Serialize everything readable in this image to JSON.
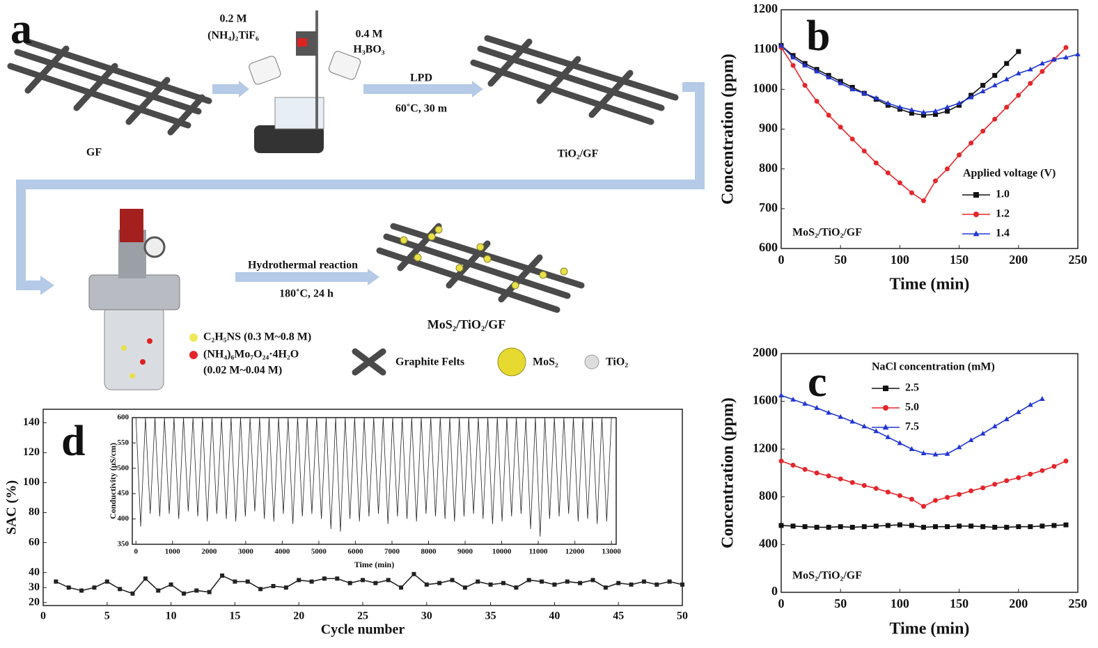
{
  "diagram": {
    "panel_label": "a",
    "ti_conc": "0.2 M",
    "ti_formula": "(NH₄)₂TiF₆",
    "b_conc": "0.4 M",
    "b_formula": "H₃BO₃",
    "step1": "LPD",
    "step1_cond": "60˚C, 30 m",
    "gf": "GF",
    "tio2_gf": "TiO₂/GF",
    "step2": "Hydrothermal reaction",
    "step2_cond": "180˚C, 24 h",
    "product": "MoS₂/TiO₂/GF",
    "reagent1": "C₂H₅NS (0.3 M~0.8 M)",
    "reagent2": "(NH₄)₆Mo₇O₂₄·4H₂O",
    "reagent2_conc": "(0.02 M~0.04 M)",
    "legend_gf": "Graphite Felts",
    "legend_mos2": "MoS₂",
    "legend_tio2": "TiO₂"
  },
  "chart_data": [
    {
      "type": "line",
      "panel_label": "b",
      "annotation": "MoS₂/TiO₂/GF",
      "x_label": "Time (min)",
      "y_label": "Concentration (ppm)",
      "legend_title": "Applied voltage (V)",
      "xlim": [
        0,
        250
      ],
      "ylim": [
        600,
        1200
      ],
      "xticks": [
        0,
        50,
        100,
        150,
        200,
        250
      ],
      "yticks": [
        600,
        700,
        800,
        900,
        1000,
        1100,
        1200
      ],
      "series": [
        {
          "name": "1.0",
          "color": "#111111",
          "marker": "square",
          "x": [
            0,
            10,
            20,
            30,
            40,
            50,
            60,
            70,
            80,
            90,
            100,
            110,
            120,
            130,
            140,
            150,
            160,
            170,
            180,
            190,
            200
          ],
          "values": [
            1110,
            1085,
            1065,
            1050,
            1035,
            1020,
            1005,
            990,
            975,
            960,
            950,
            940,
            935,
            937,
            945,
            960,
            985,
            1010,
            1035,
            1065,
            1095
          ]
        },
        {
          "name": "1.2",
          "color": "#e3262b",
          "marker": "circle",
          "x": [
            0,
            10,
            20,
            30,
            40,
            50,
            60,
            70,
            80,
            90,
            100,
            110,
            120,
            130,
            140,
            150,
            160,
            170,
            180,
            190,
            200,
            210,
            220,
            230,
            240
          ],
          "values": [
            1105,
            1060,
            1010,
            970,
            935,
            905,
            875,
            845,
            815,
            790,
            765,
            740,
            720,
            770,
            800,
            835,
            865,
            895,
            925,
            955,
            985,
            1015,
            1045,
            1075,
            1105
          ]
        },
        {
          "name": "1.4",
          "color": "#2236d2",
          "marker": "triangle",
          "x": [
            0,
            10,
            20,
            30,
            40,
            50,
            60,
            70,
            80,
            90,
            100,
            110,
            120,
            130,
            140,
            150,
            160,
            170,
            180,
            190,
            200,
            210,
            220,
            230,
            240,
            250
          ],
          "values": [
            1110,
            1080,
            1060,
            1045,
            1030,
            1015,
            1000,
            990,
            978,
            965,
            955,
            948,
            942,
            945,
            955,
            965,
            980,
            995,
            1010,
            1025,
            1040,
            1050,
            1065,
            1075,
            1080,
            1088
          ]
        }
      ]
    },
    {
      "type": "line",
      "panel_label": "c",
      "annotation": "MoS₂/TiO₂/GF",
      "x_label": "Time (min)",
      "y_label": "Concentration (ppm)",
      "legend_title": "NaCl concentration (mM)",
      "xlim": [
        0,
        250
      ],
      "ylim": [
        0,
        2000
      ],
      "xticks": [
        0,
        50,
        100,
        150,
        200,
        250
      ],
      "yticks": [
        0,
        400,
        800,
        1200,
        1600,
        2000
      ],
      "series": [
        {
          "name": "2.5",
          "color": "#111111",
          "marker": "square",
          "x": [
            0,
            10,
            20,
            30,
            40,
            50,
            60,
            70,
            80,
            90,
            100,
            110,
            120,
            130,
            140,
            150,
            160,
            170,
            180,
            190,
            200,
            210,
            220,
            230,
            240
          ],
          "values": [
            560,
            555,
            550,
            545,
            545,
            550,
            545,
            550,
            555,
            560,
            565,
            560,
            545,
            550,
            550,
            555,
            555,
            550,
            545,
            545,
            550,
            550,
            555,
            560,
            565
          ]
        },
        {
          "name": "5.0",
          "color": "#e3262b",
          "marker": "circle",
          "x": [
            0,
            10,
            20,
            30,
            40,
            50,
            60,
            70,
            80,
            90,
            100,
            110,
            120,
            130,
            140,
            150,
            160,
            170,
            180,
            190,
            200,
            210,
            220,
            230,
            240
          ],
          "values": [
            1100,
            1065,
            1030,
            1000,
            975,
            950,
            920,
            895,
            870,
            840,
            810,
            780,
            720,
            770,
            795,
            820,
            850,
            875,
            905,
            935,
            960,
            990,
            1020,
            1055,
            1100
          ]
        },
        {
          "name": "7.5",
          "color": "#2236d2",
          "marker": "triangle",
          "x": [
            0,
            10,
            20,
            30,
            40,
            50,
            60,
            70,
            80,
            90,
            100,
            110,
            120,
            130,
            140,
            150,
            160,
            170,
            180,
            190,
            200,
            210,
            220
          ],
          "values": [
            1650,
            1615,
            1580,
            1545,
            1505,
            1470,
            1430,
            1390,
            1350,
            1300,
            1250,
            1200,
            1165,
            1155,
            1160,
            1215,
            1275,
            1330,
            1390,
            1450,
            1510,
            1570,
            1620
          ]
        }
      ]
    },
    {
      "type": "line",
      "panel_label": "d",
      "x_label": "Cycle number",
      "y_label": "SAC (%)",
      "xlim": [
        0,
        50
      ],
      "ylim": [
        18,
        149
      ],
      "xticks": [
        0,
        5,
        10,
        15,
        20,
        25,
        30,
        35,
        40,
        45,
        50
      ],
      "yticks": [
        20,
        30,
        40,
        60,
        80,
        100,
        120,
        140
      ],
      "series": [
        {
          "color": "#222222",
          "marker": "square",
          "x": [
            1,
            2,
            3,
            4,
            5,
            6,
            7,
            8,
            9,
            10,
            11,
            12,
            13,
            14,
            15,
            16,
            17,
            18,
            19,
            20,
            21,
            22,
            23,
            24,
            25,
            26,
            27,
            28,
            29,
            30,
            31,
            32,
            33,
            34,
            35,
            36,
            37,
            38,
            39,
            40,
            41,
            42,
            43,
            44,
            45,
            46,
            47,
            48,
            49,
            50
          ],
          "values": [
            34,
            30,
            28,
            30,
            34,
            29,
            26,
            36,
            28,
            32,
            26,
            28,
            27,
            38,
            34,
            34,
            29,
            31,
            30,
            35,
            34,
            36,
            36,
            33,
            35,
            33,
            35,
            30,
            39,
            32,
            33,
            35,
            30,
            34,
            32,
            33,
            30,
            35,
            34,
            32,
            34,
            33,
            35,
            30,
            33,
            32,
            34,
            32,
            34,
            32
          ]
        }
      ]
    },
    {
      "type": "line",
      "x_label": "Time (min)",
      "y_label": "Conductivity (μS/cm)",
      "xlim": [
        -100,
        13130
      ],
      "ylim": [
        350,
        600
      ],
      "xticks": [
        0,
        1000,
        2000,
        3000,
        4000,
        5000,
        6000,
        7000,
        8000,
        9000,
        10000,
        11000,
        12000,
        13000
      ],
      "yticks": [
        350,
        400,
        450,
        500,
        550,
        600
      ],
      "series": [
        {
          "color": "#222222",
          "marker": "none",
          "x": [
            0,
            130,
            260,
            390,
            520,
            650,
            780,
            910,
            1040,
            1170,
            1300,
            1430,
            1560,
            1690,
            1820,
            1950,
            2080,
            2210,
            2340,
            2470,
            2600,
            2730,
            2860,
            2990,
            3120,
            3250,
            3380,
            3510,
            3640,
            3770,
            3900,
            4030,
            4160,
            4290,
            4420,
            4550,
            4680,
            4810,
            4940,
            5070,
            5200,
            5330,
            5460,
            5590,
            5720,
            5850,
            5980,
            6110,
            6240,
            6370,
            6500,
            6630,
            6760,
            6890,
            7020,
            7150,
            7280,
            7410,
            7540,
            7670,
            7800,
            7930,
            8060,
            8190,
            8320,
            8450,
            8580,
            8710,
            8840,
            8970,
            9100,
            9230,
            9360,
            9490,
            9620,
            9750,
            9880,
            10010,
            10140,
            10270,
            10400,
            10530,
            10660,
            10790,
            10920,
            11050,
            11180,
            11310,
            11440,
            11570,
            11700,
            11830,
            11960,
            12090,
            12220,
            12350,
            12480,
            12610,
            12740,
            12870,
            13000
          ],
          "values": [
            600,
            385,
            600,
            410,
            600,
            405,
            600,
            410,
            600,
            400,
            600,
            415,
            600,
            405,
            600,
            395,
            600,
            410,
            600,
            400,
            600,
            395,
            600,
            405,
            600,
            415,
            600,
            400,
            600,
            395,
            600,
            410,
            600,
            390,
            600,
            405,
            600,
            410,
            600,
            400,
            600,
            380,
            600,
            375,
            600,
            400,
            600,
            395,
            600,
            405,
            600,
            410,
            600,
            390,
            600,
            405,
            600,
            400,
            600,
            395,
            600,
            410,
            600,
            405,
            600,
            400,
            600,
            395,
            600,
            405,
            600,
            410,
            600,
            400,
            600,
            390,
            600,
            395,
            600,
            405,
            600,
            410,
            600,
            380,
            600,
            365,
            600,
            400,
            600,
            405,
            600,
            410,
            600,
            395,
            600,
            400,
            600,
            390,
            600,
            395,
            600
          ]
        }
      ]
    }
  ]
}
